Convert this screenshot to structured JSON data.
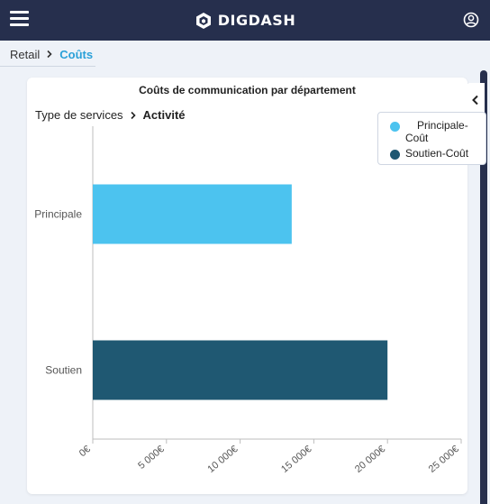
{
  "app": {
    "brand": "DIGDASH",
    "menu_icon": "hamburger-menu-icon",
    "user_icon": "user-circle-icon"
  },
  "breadcrumb": {
    "root": "Retail",
    "current": "Coûts"
  },
  "card": {
    "title": "Coûts de communication par département",
    "drill_root": "Type de services",
    "drill_current": "Activité"
  },
  "colors": {
    "topbar": "#262f4d",
    "accent": "#2aa0d8",
    "series_principale": "#4cc3ef",
    "series_soutien": "#1f5872"
  },
  "chart_data": {
    "type": "bar",
    "orientation": "horizontal",
    "title": "Coûts de communication par département",
    "categories": [
      "Principale",
      "Soutien"
    ],
    "series": [
      {
        "name": "Principale-Coût",
        "category": "Principale",
        "value": 13500,
        "color": "#4cc3ef"
      },
      {
        "name": "Soutien-Coût",
        "category": "Soutien",
        "value": 20000,
        "color": "#1f5872"
      }
    ],
    "xlim": [
      0,
      25000
    ],
    "x_ticks": [
      {
        "value": 0,
        "label": "0€"
      },
      {
        "value": 5000,
        "label": "5 000€"
      },
      {
        "value": 10000,
        "label": "10 000€"
      },
      {
        "value": 15000,
        "label": "15 000€"
      },
      {
        "value": 20000,
        "label": "20 000€"
      },
      {
        "value": 25000,
        "label": "25 000€"
      }
    ],
    "grid": false,
    "legend_position": "top-right"
  }
}
